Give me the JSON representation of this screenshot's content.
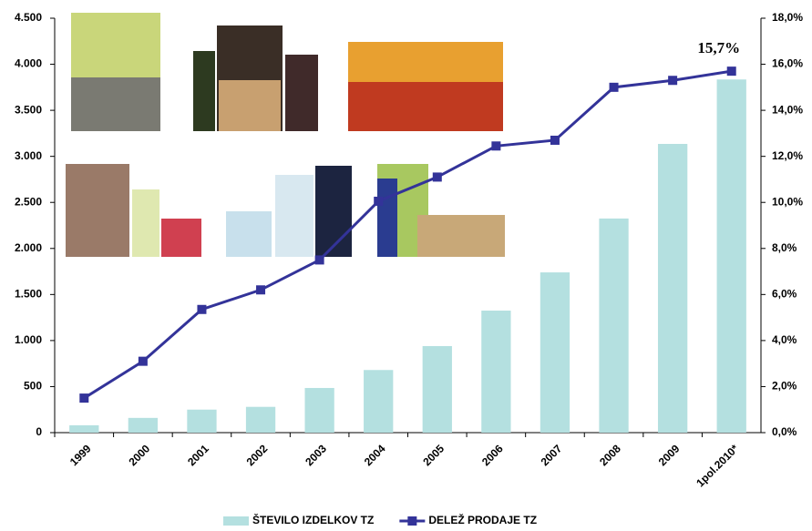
{
  "chart_data": {
    "type": "bar-line",
    "categories": [
      "1999",
      "2000",
      "2001",
      "2002",
      "2003",
      "2004",
      "2005",
      "2006",
      "2007",
      "2008",
      "2009",
      "1pol.2010*"
    ],
    "series": [
      {
        "name": "ŠTEVILO IZDELKOV TZ",
        "type": "bar",
        "color": "#b4e0e0",
        "values": [
          80,
          160,
          250,
          280,
          485,
          680,
          940,
          1325,
          1740,
          2325,
          3135,
          3835
        ]
      },
      {
        "name": "DELEŽ PRODAJE TZ",
        "type": "line",
        "axis": "y2",
        "color": "#333399",
        "values": [
          1.5,
          3.1,
          5.35,
          6.2,
          7.5,
          10.05,
          11.1,
          12.45,
          12.7,
          15.0,
          15.3,
          15.7
        ],
        "value_labels": [
          null,
          null,
          null,
          null,
          null,
          null,
          null,
          null,
          null,
          null,
          null,
          "15,7%"
        ]
      }
    ],
    "ylim": [
      0,
      4500
    ],
    "yticks": [
      0,
      500,
      {
        "value": 1000,
        "label": "1.000"
      },
      {
        "value": 1500,
        "label": "1.500"
      },
      {
        "value": 2000,
        "label": "2.000"
      },
      {
        "value": 2500,
        "label": "2.500"
      },
      {
        "value": 3000,
        "label": "3.000"
      },
      {
        "value": 3500,
        "label": "3.500"
      },
      {
        "value": 4000,
        "label": "4.000"
      },
      {
        "value": 4500,
        "label": "4.500"
      }
    ],
    "y2lim": [
      0,
      18
    ],
    "y2ticks": [
      {
        "value": 0,
        "label": "0,0%"
      },
      {
        "value": 2,
        "label": "2,0%"
      },
      {
        "value": 4,
        "label": "4,0%"
      },
      {
        "value": 6,
        "label": "6,0%"
      },
      {
        "value": 8,
        "label": "8,0%"
      },
      {
        "value": 10,
        "label": "10,0%"
      },
      {
        "value": 12,
        "label": "12,0%"
      },
      {
        "value": 14,
        "label": "14,0%"
      },
      {
        "value": 16,
        "label": "16,0%"
      },
      {
        "value": 18,
        "label": "18,0%"
      }
    ],
    "legend": "bottom"
  }
}
